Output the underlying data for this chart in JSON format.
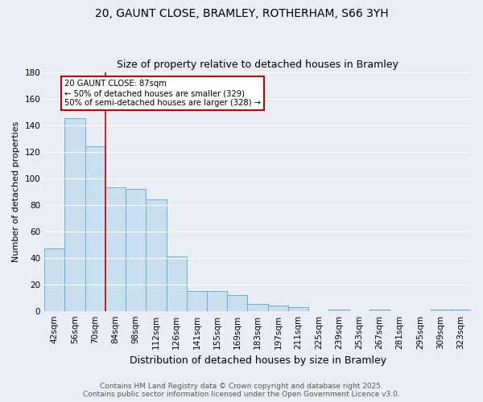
{
  "title": "20, GAUNT CLOSE, BRAMLEY, ROTHERHAM, S66 3YH",
  "subtitle": "Size of property relative to detached houses in Bramley",
  "xlabel": "Distribution of detached houses by size in Bramley",
  "ylabel": "Number of detached properties",
  "categories": [
    "42sqm",
    "56sqm",
    "70sqm",
    "84sqm",
    "98sqm",
    "112sqm",
    "126sqm",
    "141sqm",
    "155sqm",
    "169sqm",
    "183sqm",
    "197sqm",
    "211sqm",
    "225sqm",
    "239sqm",
    "253sqm",
    "267sqm",
    "281sqm",
    "295sqm",
    "309sqm",
    "323sqm"
  ],
  "values": [
    47,
    145,
    124,
    93,
    92,
    84,
    41,
    15,
    15,
    12,
    5,
    4,
    3,
    0,
    1,
    0,
    1,
    0,
    0,
    1,
    1
  ],
  "bar_color": "#c8dff0",
  "bar_edge_color": "#6aaed6",
  "red_line_x": 2.5,
  "annotation_text": "20 GAUNT CLOSE: 87sqm\n← 50% of detached houses are smaller (329)\n50% of semi-detached houses are larger (328) →",
  "annotation_box_color": "white",
  "annotation_box_edge_color": "#cc0000",
  "red_line_color": "#cc0000",
  "ylim": [
    0,
    180
  ],
  "yticks": [
    0,
    20,
    40,
    60,
    80,
    100,
    120,
    140,
    160,
    180
  ],
  "background_color": "#e8eef4",
  "grid_color": "white",
  "footer_line1": "Contains HM Land Registry data © Crown copyright and database right 2025.",
  "footer_line2": "Contains public sector information licensed under the Open Government Licence v3.0.",
  "title_fontsize": 10,
  "subtitle_fontsize": 9,
  "xlabel_fontsize": 9,
  "ylabel_fontsize": 8,
  "tick_fontsize": 7.5,
  "footer_fontsize": 6.5
}
